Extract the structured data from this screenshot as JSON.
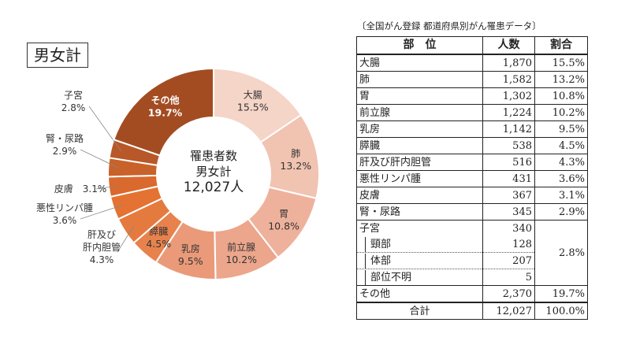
{
  "page_title": "男女計",
  "table_caption": "〔全国がん登録 都道府県別がん罹患データ〕",
  "chart_data": {
    "type": "pie",
    "center_label": [
      "罹患者数",
      "男女計",
      "12,027人"
    ],
    "slices": [
      {
        "label": "大腸",
        "percent": "15.5%",
        "value": 1870,
        "color": "#f5d5c8"
      },
      {
        "label": "肺",
        "percent": "13.2%",
        "value": 1582,
        "color": "#f1c3b1"
      },
      {
        "label": "胃",
        "percent": "10.8%",
        "value": 1302,
        "color": "#eeb29c"
      },
      {
        "label": "前立腺",
        "percent": "10.2%",
        "value": 1224,
        "color": "#eca68c"
      },
      {
        "label": "乳房",
        "percent": "9.5%",
        "value": 1142,
        "color": "#ea9a79"
      },
      {
        "label": "膵臓",
        "percent": "4.5%",
        "value": 538,
        "color": "#e8824d"
      },
      {
        "label": "肝及び肝内胆管",
        "percent": "4.3%",
        "value": 516,
        "color": "#e57a3f"
      },
      {
        "label": "悪性リンパ腫",
        "percent": "3.6%",
        "value": 431,
        "color": "#e47233"
      },
      {
        "label": "皮膚",
        "percent": "3.1%",
        "value": 367,
        "color": "#d9692c"
      },
      {
        "label": "腎・尿路",
        "percent": "2.9%",
        "value": 345,
        "color": "#c8622a"
      },
      {
        "label": "子宮",
        "percent": "2.8%",
        "value": 340,
        "color": "#b85828"
      },
      {
        "label": "その他",
        "percent": "19.7%",
        "value": 2370,
        "color": "#a34c22"
      }
    ]
  },
  "table": {
    "headers": [
      "部　位",
      "人数",
      "割合"
    ],
    "rows": [
      {
        "site": "大腸",
        "count": "1,870",
        "ratio": "15.5%"
      },
      {
        "site": "肺",
        "count": "1,582",
        "ratio": "13.2%"
      },
      {
        "site": "胃",
        "count": "1,302",
        "ratio": "10.8%"
      },
      {
        "site": "前立腺",
        "count": "1,224",
        "ratio": "10.2%"
      },
      {
        "site": "乳房",
        "count": "1,142",
        "ratio": "9.5%"
      },
      {
        "site": "膵臓",
        "count": "538",
        "ratio": "4.5%"
      },
      {
        "site": "肝及び肝内胆管",
        "count": "516",
        "ratio": "4.3%"
      },
      {
        "site": "悪性リンパ腫",
        "count": "431",
        "ratio": "3.6%"
      },
      {
        "site": "皮膚",
        "count": "367",
        "ratio": "3.1%"
      },
      {
        "site": "腎・尿路",
        "count": "345",
        "ratio": "2.9%"
      }
    ],
    "uterus": {
      "site": "子宮",
      "count": "340",
      "ratio": "2.8%",
      "subrows": [
        {
          "site": "頸部",
          "count": "128"
        },
        {
          "site": "体部",
          "count": "207"
        },
        {
          "site": "部位不明",
          "count": "5"
        }
      ]
    },
    "other": {
      "site": "その他",
      "count": "2,370",
      "ratio": "19.7%"
    },
    "total": {
      "site": "合計",
      "count": "12,027",
      "ratio": "100.0%"
    }
  }
}
